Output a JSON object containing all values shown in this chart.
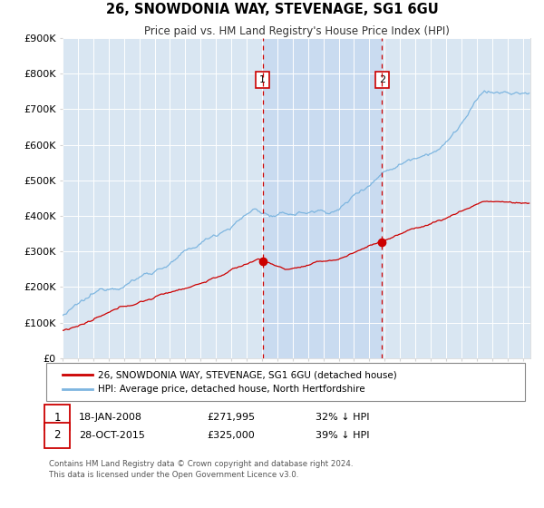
{
  "title": "26, SNOWDONIA WAY, STEVENAGE, SG1 6GU",
  "subtitle": "Price paid vs. HM Land Registry's House Price Index (HPI)",
  "hpi_color": "#7EB6E0",
  "price_color": "#CC0000",
  "plot_bg": "#D9E6F2",
  "shade_color": "#C5D9F0",
  "ylim": [
    0,
    900000
  ],
  "yticks": [
    0,
    100000,
    200000,
    300000,
    400000,
    500000,
    600000,
    700000,
    800000,
    900000
  ],
  "ytick_labels": [
    "£0",
    "£100K",
    "£200K",
    "£300K",
    "£400K",
    "£500K",
    "£600K",
    "£700K",
    "£800K",
    "£900K"
  ],
  "xlim_start": 1995.0,
  "xlim_end": 2025.5,
  "legend_line1": "26, SNOWDONIA WAY, STEVENAGE, SG1 6GU (detached house)",
  "legend_line2": "HPI: Average price, detached house, North Hertfordshire",
  "sale1_date": "18-JAN-2008",
  "sale1_price": "£271,995",
  "sale1_pct": "32% ↓ HPI",
  "sale1_x": 2008.05,
  "sale1_y": 271995,
  "sale1_label": "1",
  "sale2_date": "28-OCT-2015",
  "sale2_price": "£325,000",
  "sale2_pct": "39% ↓ HPI",
  "sale2_x": 2015.83,
  "sale2_y": 325000,
  "sale2_label": "2",
  "footnote": "Contains HM Land Registry data © Crown copyright and database right 2024.\nThis data is licensed under the Open Government Licence v3.0."
}
